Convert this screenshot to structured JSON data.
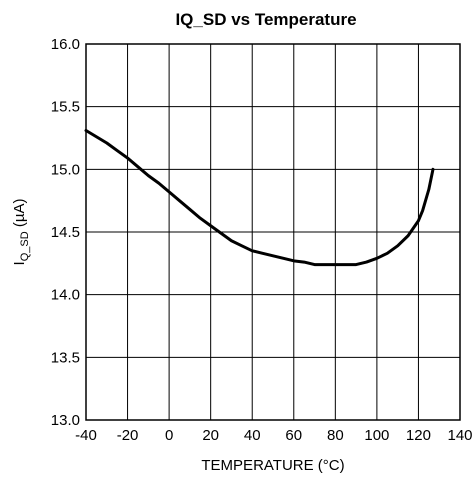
{
  "chart_data": {
    "type": "line",
    "title": "IQ_SD vs Temperature",
    "xlabel": "TEMPERATURE (°C)",
    "ylabel": {
      "main": "I",
      "sub": "Q_SD",
      "unit": " (µA)"
    },
    "xlim": [
      -40,
      140
    ],
    "ylim": [
      13.0,
      16.0
    ],
    "xticks": [
      -40,
      -20,
      0,
      20,
      40,
      60,
      80,
      100,
      120,
      140
    ],
    "yticks": [
      13.0,
      13.5,
      14.0,
      14.5,
      15.0,
      15.5,
      16.0
    ],
    "xtick_labels": [
      "-40",
      "-20",
      "0",
      "20",
      "40",
      "60",
      "80",
      "100",
      "120",
      "140"
    ],
    "ytick_labels": [
      "13.0",
      "13.5",
      "14.0",
      "14.5",
      "15.0",
      "15.5",
      "16.0"
    ],
    "grid": true,
    "series": [
      {
        "x": [
          -40,
          -35,
          -30,
          -25,
          -20,
          -15,
          -10,
          -5,
          0,
          5,
          10,
          15,
          20,
          25,
          30,
          35,
          40,
          45,
          50,
          55,
          60,
          65,
          70,
          75,
          80,
          85,
          90,
          95,
          100,
          105,
          110,
          115,
          120,
          122,
          125,
          127
        ],
        "y": [
          15.31,
          15.26,
          15.21,
          15.15,
          15.09,
          15.02,
          14.95,
          14.89,
          14.82,
          14.75,
          14.68,
          14.61,
          14.55,
          14.49,
          14.43,
          14.39,
          14.35,
          14.33,
          14.31,
          14.29,
          14.27,
          14.26,
          14.24,
          14.24,
          14.24,
          14.24,
          14.24,
          14.26,
          14.29,
          14.33,
          14.39,
          14.47,
          14.59,
          14.67,
          14.84,
          15.0
        ],
        "color": "#000000"
      }
    ]
  }
}
